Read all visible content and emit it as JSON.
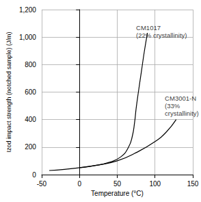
{
  "chart_data": {
    "type": "line",
    "x_label": "Temperature (°C)",
    "y_label": "Izod impact strength (notched sample) (J/m)",
    "xlim": [
      -50,
      150
    ],
    "xticks": [
      -50,
      0,
      50,
      100,
      150
    ],
    "ylim": [
      0,
      1200
    ],
    "yticks": [
      0,
      200,
      400,
      600,
      800,
      1000,
      1200
    ],
    "grid": true,
    "series": [
      {
        "name": "CM1017",
        "color": "#000000",
        "x": [
          -40,
          -20,
          0,
          20,
          40,
          55,
          65,
          70,
          73,
          75,
          78,
          82,
          86,
          90
        ],
        "values": [
          30,
          38,
          50,
          65,
          90,
          130,
          200,
          280,
          380,
          480,
          600,
          750,
          900,
          1030
        ]
      },
      {
        "name": "CM3001-N",
        "color": "#000000",
        "x": [
          0,
          25,
          50,
          75,
          100,
          115,
          128
        ],
        "values": [
          50,
          70,
          100,
          160,
          240,
          310,
          400
        ]
      }
    ],
    "annotations": [
      {
        "text": "CM1017\n(22% crystallinity)",
        "x": 75,
        "y": 1040
      },
      {
        "text": "CM3001-N\n(33%\ncrystallinity)",
        "x": 113,
        "y": 500
      }
    ]
  }
}
